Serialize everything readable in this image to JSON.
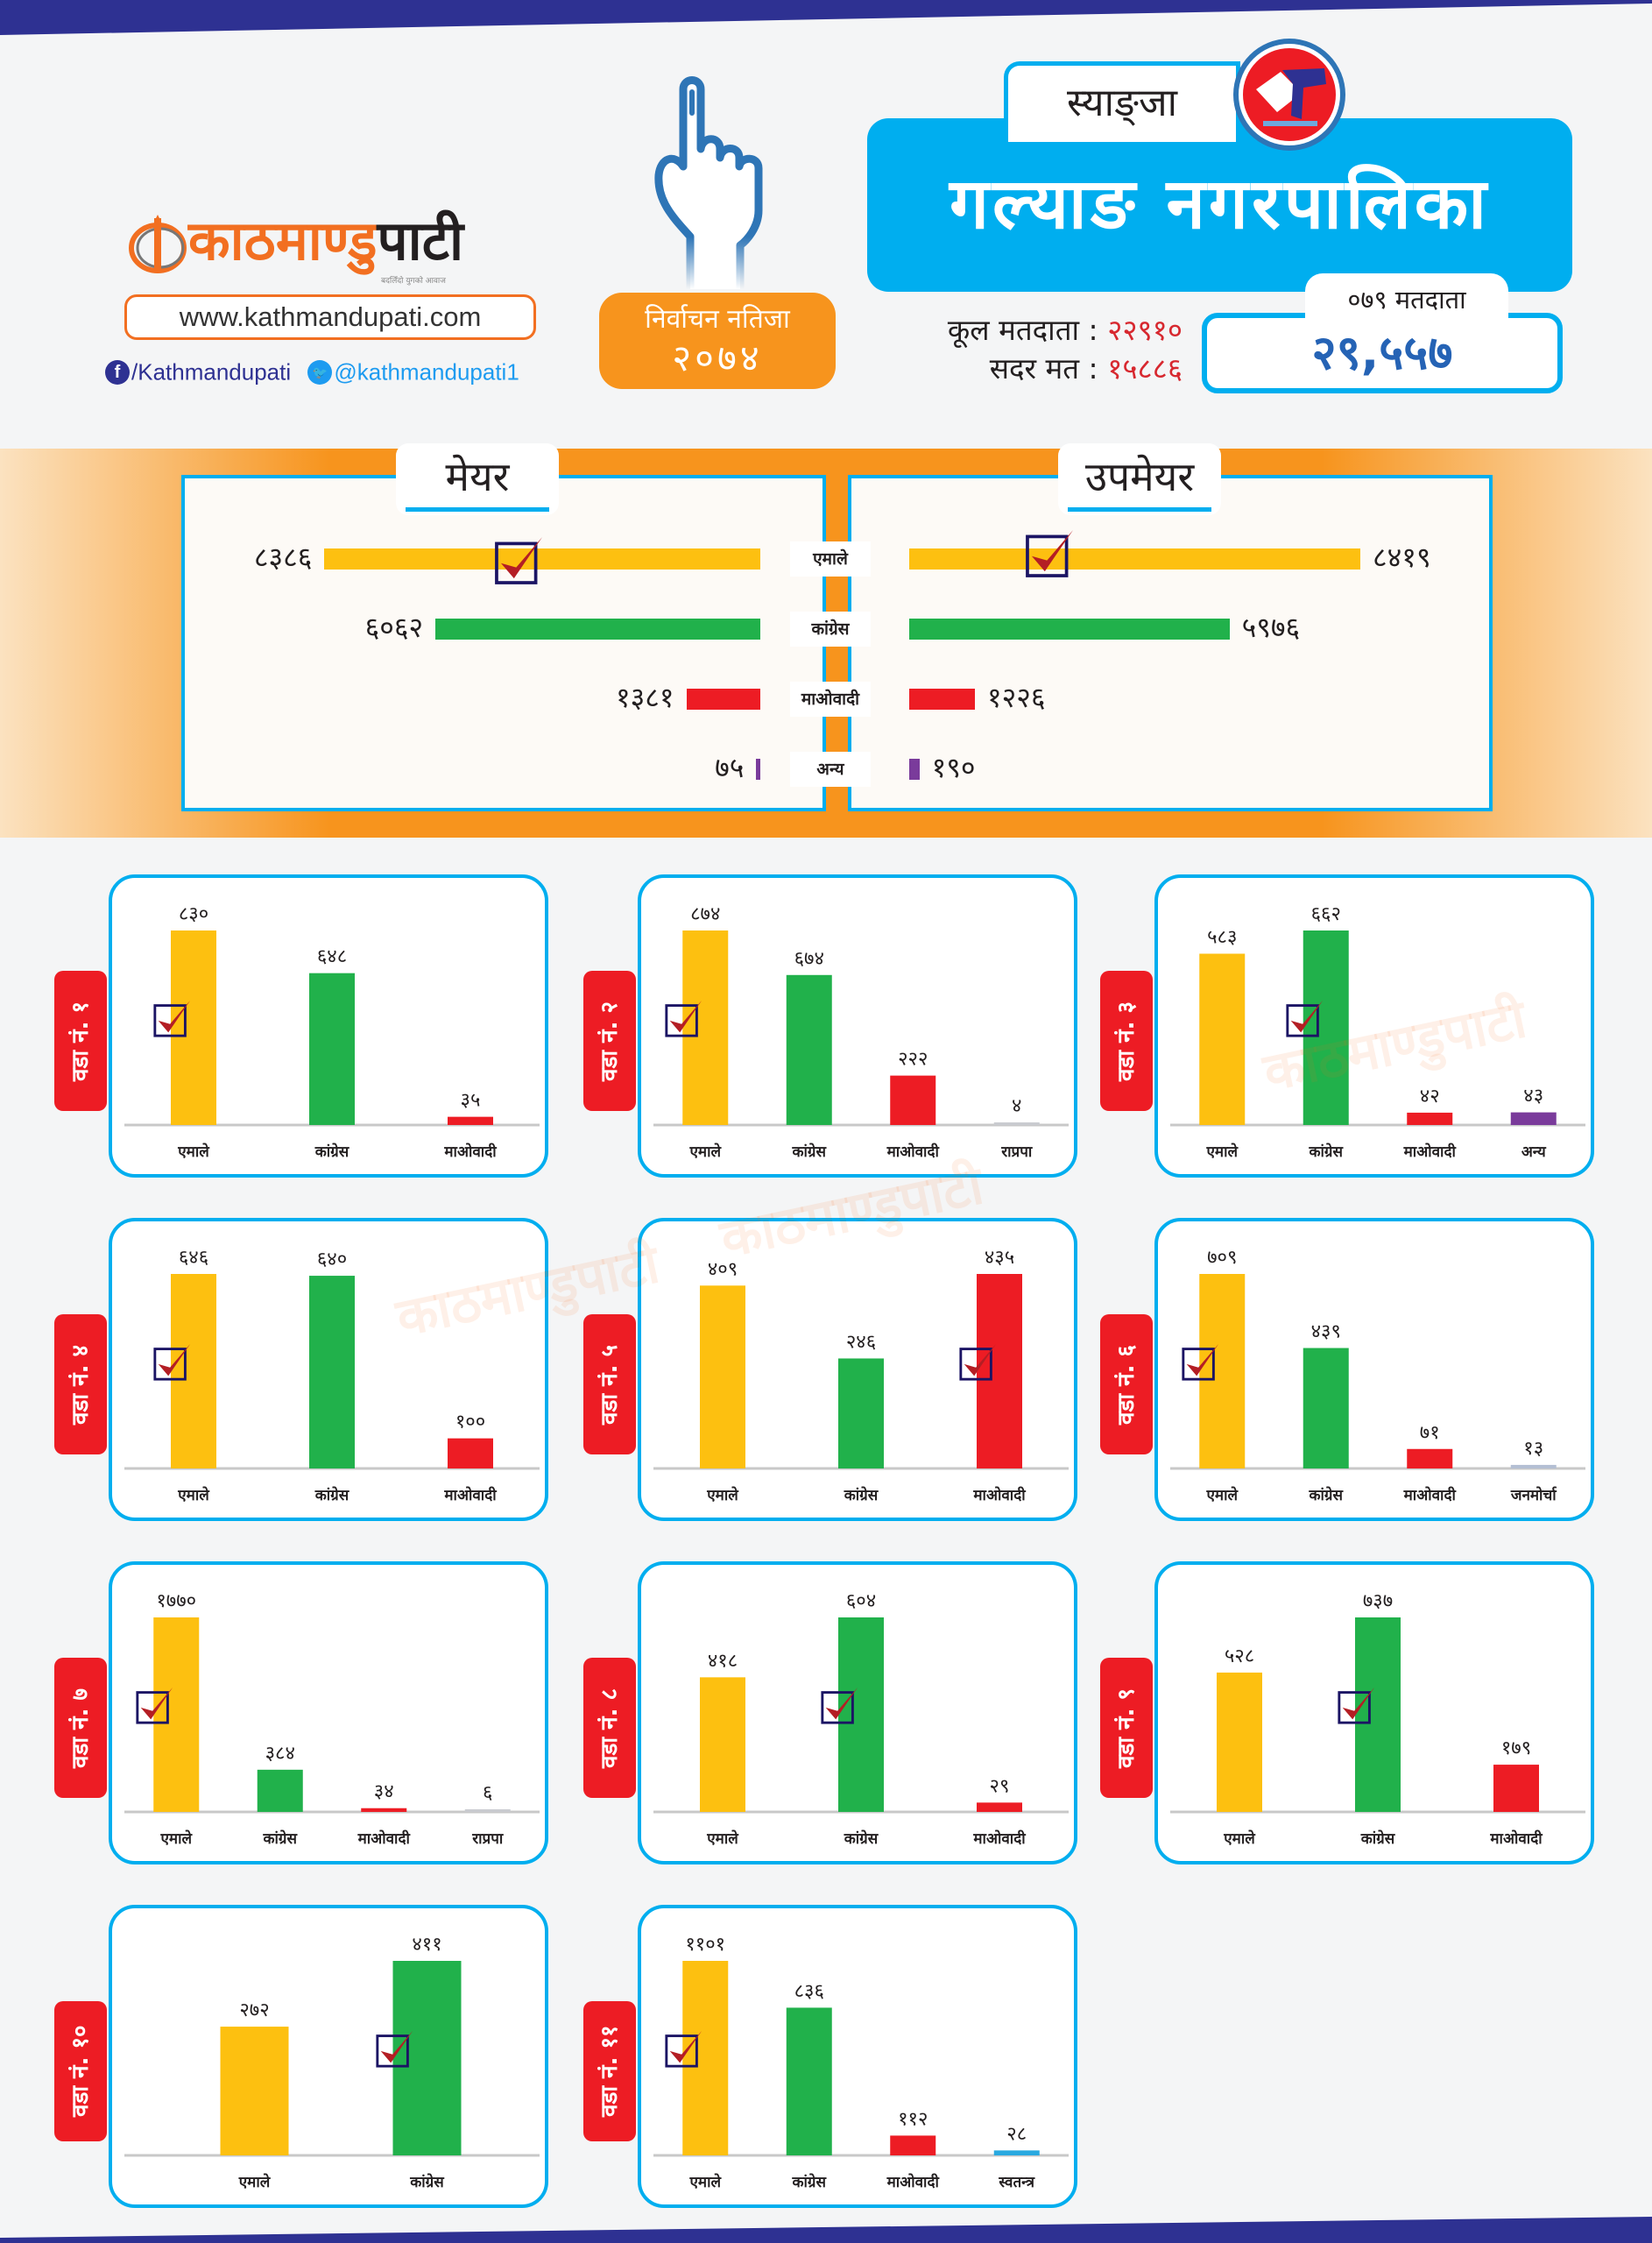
{
  "brand": {
    "logo_orange": "काठमाण्डु",
    "logo_black": "पाटी",
    "tagline": "बदलिँदो युगको आवाज",
    "website": "www.kathmandupati.com",
    "facebook": "/Kathmandupati",
    "twitter": "@kathmandupati1",
    "colors": {
      "orange": "#f26f21",
      "navy": "#2e3192",
      "sky": "#00aeef"
    }
  },
  "badge": {
    "line1": "निर्वाचन नतिजा",
    "line2": "२०७४"
  },
  "header": {
    "district": "स्याङ्जा",
    "municipality": "गल्याङ नगरपालिका",
    "total_voters_label": "कूल मतदाता :",
    "total_voters_value": "२२९१०",
    "valid_votes_label": "सदर मत :",
    "valid_votes_value": "१५८८६",
    "voters_079_label": "०७९ मतदाता",
    "voters_079_value": "२९,५५७"
  },
  "icons": {
    "hand": "voting-finger-icon",
    "ballot": "ballot-box-icon",
    "winner": "checkmark-icon",
    "facebook": "facebook-icon",
    "twitter": "twitter-icon"
  },
  "party_colors": {
    "एमाले": "#fdc010",
    "कांग्रेस": "#21b14b",
    "माओवादी": "#ed1c24",
    "अन्य": "#7a3b9b",
    "राप्रपा": "#c9cbd0",
    "जनमोर्चा": "#b4bfd3",
    "स्वतन्त्र": "#29a9e0"
  },
  "chart_data": [
    {
      "type": "bar",
      "orientation": "horizontal",
      "title": "मेयर",
      "categories": [
        "एमाले",
        "कांग्रेस",
        "माओवादी",
        "अन्य"
      ],
      "values": [
        8386,
        6062,
        1381,
        75
      ],
      "value_labels": [
        "८३८६",
        "६०६२",
        "१३८१",
        "७५"
      ],
      "winner": "एमाले"
    },
    {
      "type": "bar",
      "orientation": "horizontal",
      "title": "उपमेयर",
      "categories": [
        "एमाले",
        "कांग्रेस",
        "माओवादी",
        "अन्य"
      ],
      "values": [
        8419,
        5976,
        1226,
        190
      ],
      "value_labels": [
        "८४१९",
        "५९७६",
        "१२२६",
        "१९०"
      ],
      "winner": "एमाले"
    },
    {
      "type": "bar",
      "title": "वडा नं. १",
      "categories": [
        "एमाले",
        "कांग्रेस",
        "माओवादी"
      ],
      "values": [
        830,
        648,
        35
      ],
      "value_labels": [
        "८३०",
        "६४८",
        "३५"
      ],
      "winner": "एमाले"
    },
    {
      "type": "bar",
      "title": "वडा नं. २",
      "categories": [
        "एमाले",
        "कांग्रेस",
        "माओवादी",
        "राप्रपा"
      ],
      "values": [
        874,
        674,
        222,
        4
      ],
      "value_labels": [
        "८७४",
        "६७४",
        "२२२",
        "४"
      ],
      "winner": "एमाले"
    },
    {
      "type": "bar",
      "title": "वडा नं. ३",
      "categories": [
        "एमाले",
        "कांग्रेस",
        "माओवादी",
        "अन्य"
      ],
      "values": [
        583,
        662,
        42,
        43
      ],
      "value_labels": [
        "५८३",
        "६६२",
        "४२",
        "४३"
      ],
      "winner": "कांग्रेस"
    },
    {
      "type": "bar",
      "title": "वडा नं. ४",
      "categories": [
        "एमाले",
        "कांग्रेस",
        "माओवादी"
      ],
      "values": [
        646,
        640,
        100
      ],
      "value_labels": [
        "६४६",
        "६४०",
        "१००"
      ],
      "winner": "एमाले"
    },
    {
      "type": "bar",
      "title": "वडा नं. ५",
      "categories": [
        "एमाले",
        "कांग्रेस",
        "माओवादी"
      ],
      "values": [
        409,
        246,
        435
      ],
      "value_labels": [
        "४०९",
        "२४६",
        "४३५"
      ],
      "winner": "माओवादी"
    },
    {
      "type": "bar",
      "title": "वडा नं. ६",
      "categories": [
        "एमाले",
        "कांग्रेस",
        "माओवादी",
        "जनमोर्चा"
      ],
      "values": [
        709,
        439,
        71,
        13
      ],
      "value_labels": [
        "७०९",
        "४३९",
        "७१",
        "१३"
      ],
      "winner": "एमाले"
    },
    {
      "type": "bar",
      "title": "वडा नं. ७",
      "categories": [
        "एमाले",
        "कांग्रेस",
        "माओवादी",
        "राप्रपा"
      ],
      "values": [
        1770,
        384,
        34,
        6
      ],
      "value_labels": [
        "१७७०",
        "३८४",
        "३४",
        "६"
      ],
      "winner": "एमाले"
    },
    {
      "type": "bar",
      "title": "वडा नं. ८",
      "categories": [
        "एमाले",
        "कांग्रेस",
        "माओवादी"
      ],
      "values": [
        418,
        604,
        29
      ],
      "value_labels": [
        "४१८",
        "६०४",
        "२९"
      ],
      "winner": "कांग्रेस"
    },
    {
      "type": "bar",
      "title": "वडा नं. ९",
      "categories": [
        "एमाले",
        "कांग्रेस",
        "माओवादी"
      ],
      "values": [
        528,
        737,
        179
      ],
      "value_labels": [
        "५२८",
        "७३७",
        "१७९"
      ],
      "winner": "कांग्रेस"
    },
    {
      "type": "bar",
      "title": "वडा नं. १०",
      "categories": [
        "एमाले",
        "कांग्रेस"
      ],
      "values": [
        272,
        411
      ],
      "value_labels": [
        "२७२",
        "४११"
      ],
      "winner": "कांग्रेस"
    },
    {
      "type": "bar",
      "title": "वडा नं. ११",
      "categories": [
        "एमाले",
        "कांग्रेस",
        "माओवादी",
        "स्वतन्त्र"
      ],
      "values": [
        1101,
        836,
        112,
        28
      ],
      "value_labels": [
        "११०१",
        "८३६",
        "११२",
        "२८"
      ],
      "winner": "एमाले"
    }
  ]
}
